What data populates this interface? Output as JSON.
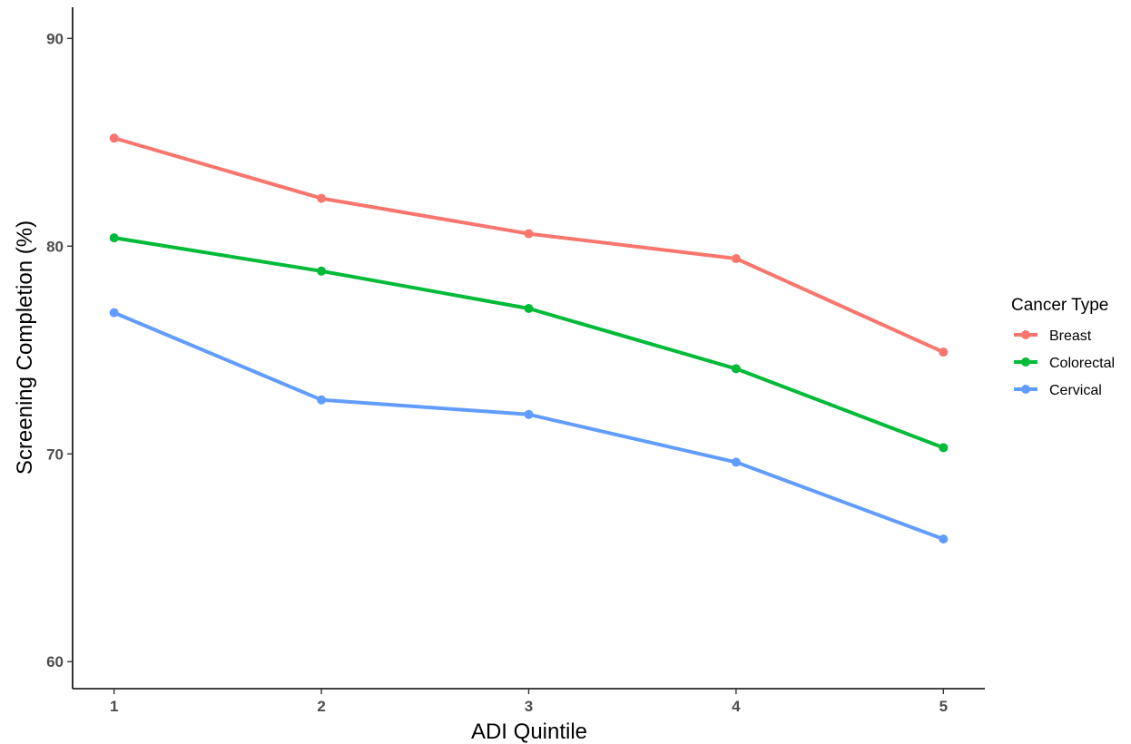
{
  "chart_data": {
    "type": "line",
    "title": "",
    "xlabel": "ADI Quintile",
    "ylabel": "Screening Completion (%)",
    "x": [
      1,
      2,
      3,
      4,
      5
    ],
    "x_tick_labels": [
      "1",
      "2",
      "3",
      "4",
      "5"
    ],
    "xlim": [
      0.8,
      5.2
    ],
    "ylim": [
      58.7,
      91.5
    ],
    "y_ticks": [
      60,
      70,
      80,
      90
    ],
    "y_tick_labels": [
      "60",
      "70",
      "80",
      "90"
    ],
    "grid": false,
    "legend": {
      "title": "Cancer Type",
      "placement": "right"
    },
    "series": [
      {
        "name": "Breast",
        "color": "#F8766D",
        "values": [
          85.2,
          82.3,
          80.6,
          79.4,
          74.9
        ]
      },
      {
        "name": "Colorectal",
        "color": "#00BA38",
        "values": [
          80.4,
          78.8,
          77.0,
          74.1,
          70.3
        ]
      },
      {
        "name": "Cervical",
        "color": "#619CFF",
        "values": [
          76.8,
          72.6,
          71.9,
          69.6,
          65.9
        ]
      }
    ]
  }
}
